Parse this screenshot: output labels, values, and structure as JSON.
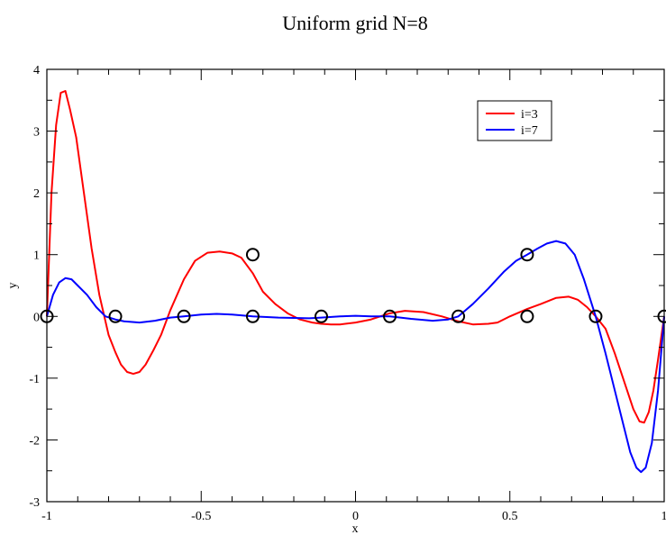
{
  "chart_data": {
    "type": "line",
    "title": "Uniform grid N=8",
    "xlabel": "x",
    "ylabel": "y",
    "xlim": [
      -1,
      1
    ],
    "ylim": [
      -3,
      4
    ],
    "xticks": [
      -1,
      -0.5,
      0,
      0.5,
      1
    ],
    "xtick_labels": [
      "-1",
      "-0.5",
      "0",
      "0.5",
      "1"
    ],
    "yticks": [
      -3,
      -2,
      -1,
      0,
      1,
      2,
      3,
      4
    ],
    "ytick_labels": [
      "-3",
      "-2",
      "-1",
      "0",
      "1",
      "2",
      "3",
      "4"
    ],
    "grid": false,
    "legend_position": "top-right",
    "series": [
      {
        "name": "i=3",
        "color": "#ff0000",
        "x": [
          -1.0,
          -0.985,
          -0.97,
          -0.955,
          -0.94,
          -0.925,
          -0.905,
          -0.88,
          -0.855,
          -0.83,
          -0.8,
          -0.778,
          -0.76,
          -0.74,
          -0.72,
          -0.7,
          -0.68,
          -0.655,
          -0.63,
          -0.6,
          -0.556,
          -0.52,
          -0.48,
          -0.44,
          -0.4,
          -0.37,
          -0.333,
          -0.3,
          -0.26,
          -0.22,
          -0.18,
          -0.14,
          -0.111,
          -0.08,
          -0.05,
          0.0,
          0.05,
          0.111,
          0.16,
          0.22,
          0.28,
          0.333,
          0.38,
          0.43,
          0.46,
          0.5,
          0.556,
          0.6,
          0.65,
          0.69,
          0.72,
          0.75,
          0.778,
          0.81,
          0.84,
          0.87,
          0.9,
          0.92,
          0.935,
          0.95,
          0.965,
          0.98,
          1.0
        ],
        "y": [
          0.0,
          2.0,
          3.1,
          3.62,
          3.65,
          3.35,
          2.9,
          2.0,
          1.1,
          0.35,
          -0.3,
          -0.58,
          -0.78,
          -0.9,
          -0.93,
          -0.9,
          -0.78,
          -0.55,
          -0.3,
          0.1,
          0.6,
          0.9,
          1.03,
          1.05,
          1.02,
          0.95,
          0.7,
          0.4,
          0.2,
          0.05,
          -0.05,
          -0.1,
          -0.12,
          -0.13,
          -0.13,
          -0.1,
          -0.05,
          0.05,
          0.09,
          0.07,
          0.0,
          -0.08,
          -0.13,
          -0.12,
          -0.1,
          0.0,
          0.12,
          0.2,
          0.3,
          0.32,
          0.27,
          0.15,
          0.0,
          -0.2,
          -0.6,
          -1.05,
          -1.5,
          -1.7,
          -1.72,
          -1.55,
          -1.2,
          -0.7,
          0.0
        ]
      },
      {
        "name": "i=7",
        "color": "#0000ff",
        "x": [
          -1.0,
          -0.98,
          -0.96,
          -0.94,
          -0.92,
          -0.9,
          -0.87,
          -0.84,
          -0.81,
          -0.778,
          -0.75,
          -0.7,
          -0.65,
          -0.6,
          -0.556,
          -0.5,
          -0.45,
          -0.4,
          -0.333,
          -0.25,
          -0.15,
          -0.111,
          -0.05,
          0.0,
          0.05,
          0.111,
          0.18,
          0.25,
          0.3,
          0.333,
          0.38,
          0.43,
          0.48,
          0.52,
          0.556,
          0.59,
          0.62,
          0.65,
          0.68,
          0.71,
          0.74,
          0.778,
          0.81,
          0.84,
          0.87,
          0.89,
          0.91,
          0.925,
          0.94,
          0.96,
          0.98,
          1.0
        ],
        "y": [
          0.0,
          0.35,
          0.55,
          0.62,
          0.6,
          0.5,
          0.35,
          0.15,
          0.0,
          -0.05,
          -0.08,
          -0.1,
          -0.07,
          -0.02,
          0.0,
          0.03,
          0.04,
          0.03,
          0.0,
          -0.02,
          -0.03,
          -0.02,
          0.0,
          0.01,
          0.0,
          0.0,
          -0.04,
          -0.07,
          -0.05,
          0.0,
          0.2,
          0.45,
          0.72,
          0.9,
          1.0,
          1.1,
          1.18,
          1.22,
          1.18,
          1.0,
          0.6,
          0.0,
          -0.6,
          -1.2,
          -1.8,
          -2.2,
          -2.45,
          -2.52,
          -2.45,
          -2.05,
          -1.2,
          0.0
        ]
      }
    ],
    "markers": {
      "shape": "open-circle",
      "color": "#000000",
      "points": [
        {
          "x": -1.0,
          "y": 0
        },
        {
          "x": -0.778,
          "y": 0
        },
        {
          "x": -0.556,
          "y": 0
        },
        {
          "x": -0.333,
          "y": 1
        },
        {
          "x": -0.333,
          "y": 0
        },
        {
          "x": -0.111,
          "y": 0
        },
        {
          "x": 0.111,
          "y": 0
        },
        {
          "x": 0.333,
          "y": 0
        },
        {
          "x": 0.556,
          "y": 1
        },
        {
          "x": 0.556,
          "y": 0
        },
        {
          "x": 0.778,
          "y": 0
        },
        {
          "x": 1.0,
          "y": 0
        }
      ]
    }
  }
}
